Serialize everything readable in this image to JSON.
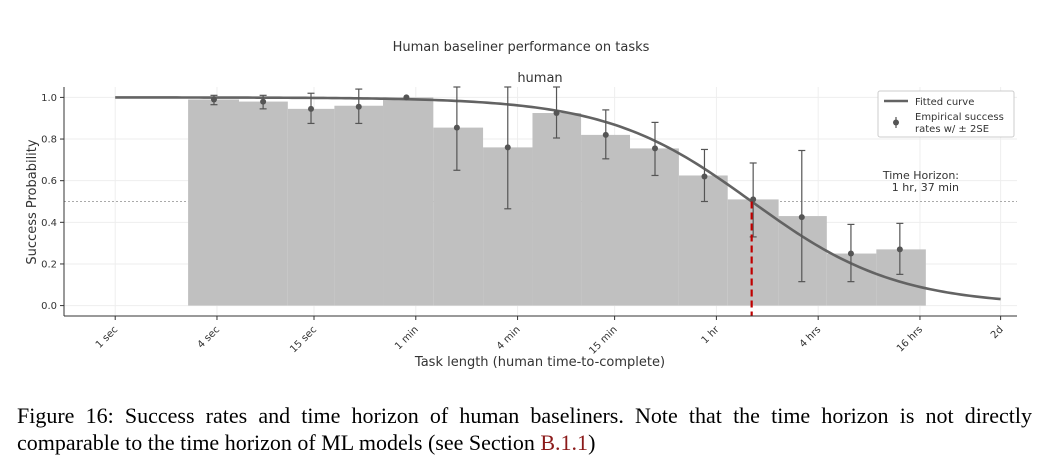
{
  "chart_data": {
    "type": "bar",
    "suptitle": "Human baseliner performance on tasks",
    "title": "human",
    "xlabel": "Task length (human time-to-complete)",
    "ylabel": "Success Probability",
    "x_scale": "log",
    "x_unit": "minutes",
    "xlim": [
      0.0083,
      3600
    ],
    "ylim": [
      -0.05,
      1.05
    ],
    "x_ticks": [
      {
        "label": "1 sec",
        "value": 0.01667
      },
      {
        "label": "4 sec",
        "value": 0.06667
      },
      {
        "label": "15 sec",
        "value": 0.25
      },
      {
        "label": "1 min",
        "value": 1
      },
      {
        "label": "4 min",
        "value": 4
      },
      {
        "label": "15 min",
        "value": 15
      },
      {
        "label": "1 hr",
        "value": 60
      },
      {
        "label": "4 hrs",
        "value": 240
      },
      {
        "label": "16 hrs",
        "value": 960
      },
      {
        "label": "2d",
        "value": 2880
      }
    ],
    "y_ticks": [
      {
        "label": "0.0",
        "value": 0.0
      },
      {
        "label": "0.2",
        "value": 0.2
      },
      {
        "label": "0.4",
        "value": 0.4
      },
      {
        "label": "0.6",
        "value": 0.6
      },
      {
        "label": "0.8",
        "value": 0.8
      },
      {
        "label": "1.0",
        "value": 1.0
      }
    ],
    "bins": [
      {
        "x0": 0.045,
        "x1": 0.09,
        "value": 0.99
      },
      {
        "x0": 0.09,
        "x1": 0.175,
        "value": 0.98
      },
      {
        "x0": 0.175,
        "x1": 0.33,
        "value": 0.945
      },
      {
        "x0": 0.33,
        "x1": 0.64,
        "value": 0.96
      },
      {
        "x0": 0.64,
        "x1": 1.27,
        "value": 1.0
      },
      {
        "x0": 1.27,
        "x1": 2.5,
        "value": 0.855
      },
      {
        "x0": 2.5,
        "x1": 4.9,
        "value": 0.76
      },
      {
        "x0": 4.9,
        "x1": 9.5,
        "value": 0.925
      },
      {
        "x0": 9.5,
        "x1": 18.5,
        "value": 0.82
      },
      {
        "x0": 18.5,
        "x1": 36,
        "value": 0.755
      },
      {
        "x0": 36,
        "x1": 70,
        "value": 0.625
      },
      {
        "x0": 70,
        "x1": 140,
        "value": 0.51
      },
      {
        "x0": 140,
        "x1": 270,
        "value": 0.43
      },
      {
        "x0": 270,
        "x1": 530,
        "value": 0.25
      },
      {
        "x0": 530,
        "x1": 1040,
        "value": 0.27
      }
    ],
    "empirical_points": [
      {
        "x": 0.064,
        "y": 0.99,
        "lo": 0.965,
        "hi": 1.01
      },
      {
        "x": 0.125,
        "y": 0.98,
        "lo": 0.945,
        "hi": 1.01
      },
      {
        "x": 0.24,
        "y": 0.945,
        "lo": 0.875,
        "hi": 1.02
      },
      {
        "x": 0.46,
        "y": 0.955,
        "lo": 0.875,
        "hi": 1.04
      },
      {
        "x": 0.88,
        "y": 1.0,
        "lo": 1.0,
        "hi": 1.0
      },
      {
        "x": 1.75,
        "y": 0.855,
        "lo": 0.65,
        "hi": 1.05
      },
      {
        "x": 3.5,
        "y": 0.76,
        "lo": 0.465,
        "hi": 1.05
      },
      {
        "x": 6.8,
        "y": 0.925,
        "lo": 0.805,
        "hi": 1.05
      },
      {
        "x": 13.3,
        "y": 0.82,
        "lo": 0.705,
        "hi": 0.94
      },
      {
        "x": 26,
        "y": 0.755,
        "lo": 0.625,
        "hi": 0.88
      },
      {
        "x": 51,
        "y": 0.62,
        "lo": 0.5,
        "hi": 0.75
      },
      {
        "x": 99,
        "y": 0.51,
        "lo": 0.33,
        "hi": 0.685
      },
      {
        "x": 192,
        "y": 0.425,
        "lo": 0.115,
        "hi": 0.745
      },
      {
        "x": 375,
        "y": 0.25,
        "lo": 0.115,
        "hi": 0.39
      },
      {
        "x": 730,
        "y": 0.27,
        "lo": 0.15,
        "hi": 0.395
      }
    ],
    "fitted_curve": {
      "x50": 97,
      "slope_per_decade": 2.33,
      "x_range": [
        0.01667,
        2880
      ]
    },
    "threshold_line": 0.5,
    "time_horizon": {
      "value": 97,
      "label_line1": "Time Horizon:",
      "label_line2": "1 hr, 37 min"
    },
    "legend": {
      "placement": "upper-right",
      "fitted_label": "Fitted curve",
      "empirical_label_line1": "Empirical success",
      "empirical_label_line2": "rates w/ ± 2SE"
    },
    "colors": {
      "bar": "#c0c0c0",
      "curve": "#636363",
      "points": "#555555",
      "horizon": "#c00000",
      "grid": "#eeeeee",
      "threshold": "#aaaaaa"
    }
  },
  "caption": {
    "text": "Figure 16: Success rates and time horizon of human baseliners. Note that the time horizon is not directly comparable to the time horizon of ML models (see Section ",
    "ref": "B.1.1",
    "end": ")"
  }
}
